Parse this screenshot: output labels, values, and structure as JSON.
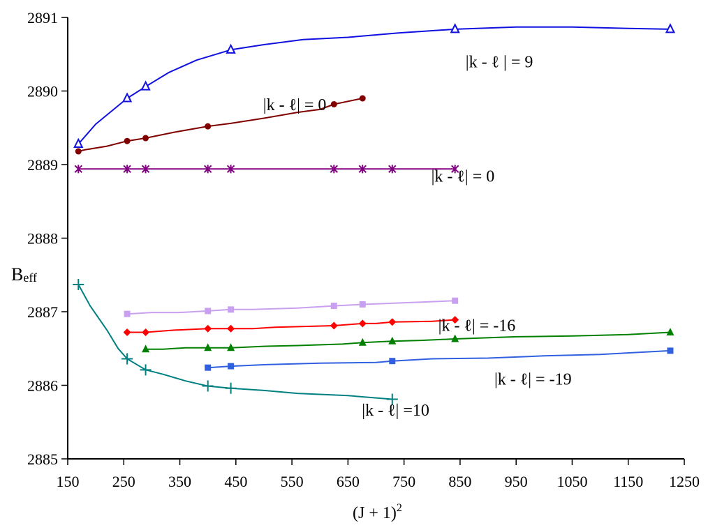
{
  "chart_data": {
    "type": "line",
    "title": "",
    "xlabel": "(J + 1)",
    "xlabel_sup": "2",
    "ylabel": "B",
    "ylabel_sub": "eff",
    "xlim": [
      150,
      1250
    ],
    "ylim": [
      2885,
      2891
    ],
    "xticks": [
      150,
      250,
      350,
      450,
      550,
      650,
      750,
      850,
      950,
      1050,
      1150,
      1250
    ],
    "yticks": [
      2885,
      2886,
      2887,
      2888,
      2889,
      2890,
      2891
    ],
    "grid": false,
    "legend": "none",
    "series": [
      {
        "color": "#1010e0",
        "marker": "triangle-open",
        "points": [
          [
            169,
            2889.28
          ],
          [
            256,
            2889.9
          ],
          [
            289,
            2890.06
          ],
          [
            441,
            2890.56
          ],
          [
            841,
            2890.84
          ],
          [
            1225,
            2890.84
          ]
        ],
        "curve": [
          [
            169,
            2889.28
          ],
          [
            200,
            2889.55
          ],
          [
            256,
            2889.9
          ],
          [
            289,
            2890.06
          ],
          [
            330,
            2890.25
          ],
          [
            380,
            2890.42
          ],
          [
            441,
            2890.56
          ],
          [
            500,
            2890.63
          ],
          [
            570,
            2890.7
          ],
          [
            650,
            2890.73
          ],
          [
            740,
            2890.79
          ],
          [
            841,
            2890.84
          ],
          [
            950,
            2890.87
          ],
          [
            1050,
            2890.87
          ],
          [
            1150,
            2890.85
          ],
          [
            1225,
            2890.84
          ]
        ]
      },
      {
        "color": "#800000",
        "marker": "circle",
        "points": [
          [
            169,
            2889.18
          ],
          [
            256,
            2889.32
          ],
          [
            289,
            2889.36
          ],
          [
            400,
            2889.52
          ],
          [
            625,
            2889.82
          ],
          [
            676,
            2889.9
          ]
        ],
        "curve": [
          [
            169,
            2889.18
          ],
          [
            180,
            2889.2
          ],
          [
            220,
            2889.25
          ],
          [
            256,
            2889.32
          ],
          [
            289,
            2889.36
          ],
          [
            340,
            2889.44
          ],
          [
            400,
            2889.52
          ],
          [
            441,
            2889.56
          ],
          [
            500,
            2889.63
          ],
          [
            560,
            2889.71
          ],
          [
            600,
            2889.75
          ],
          [
            625,
            2889.82
          ],
          [
            676,
            2889.9
          ]
        ]
      },
      {
        "color": "#800080",
        "marker": "star",
        "points": [
          [
            169,
            2888.94
          ],
          [
            256,
            2888.94
          ],
          [
            289,
            2888.94
          ],
          [
            400,
            2888.94
          ],
          [
            441,
            2888.94
          ],
          [
            625,
            2888.94
          ],
          [
            676,
            2888.94
          ],
          [
            729,
            2888.94
          ],
          [
            841,
            2888.94
          ]
        ],
        "curve": [
          [
            169,
            2888.94
          ],
          [
            841,
            2888.94
          ]
        ]
      },
      {
        "color": "#c9a0f0",
        "marker": "square",
        "points": [
          [
            256,
            2886.97
          ],
          [
            400,
            2887.01
          ],
          [
            441,
            2887.03
          ],
          [
            625,
            2887.08
          ],
          [
            676,
            2887.1
          ],
          [
            841,
            2887.15
          ]
        ],
        "curve": [
          [
            256,
            2886.97
          ],
          [
            300,
            2886.99
          ],
          [
            350,
            2886.99
          ],
          [
            400,
            2887.01
          ],
          [
            441,
            2887.03
          ],
          [
            480,
            2887.03
          ],
          [
            560,
            2887.05
          ],
          [
            625,
            2887.08
          ],
          [
            676,
            2887.1
          ],
          [
            780,
            2887.13
          ],
          [
            841,
            2887.15
          ]
        ]
      },
      {
        "color": "#ff0000",
        "marker": "diamond",
        "points": [
          [
            256,
            2886.72
          ],
          [
            289,
            2886.72
          ],
          [
            400,
            2886.77
          ],
          [
            441,
            2886.77
          ],
          [
            625,
            2886.81
          ],
          [
            676,
            2886.84
          ],
          [
            729,
            2886.86
          ],
          [
            841,
            2886.89
          ]
        ],
        "curve": [
          [
            256,
            2886.72
          ],
          [
            289,
            2886.72
          ],
          [
            340,
            2886.75
          ],
          [
            400,
            2886.77
          ],
          [
            441,
            2886.77
          ],
          [
            480,
            2886.77
          ],
          [
            520,
            2886.79
          ],
          [
            625,
            2886.81
          ],
          [
            676,
            2886.84
          ],
          [
            700,
            2886.84
          ],
          [
            729,
            2886.86
          ],
          [
            800,
            2886.87
          ],
          [
            841,
            2886.89
          ]
        ]
      },
      {
        "color": "#008000",
        "marker": "triangle",
        "points": [
          [
            289,
            2886.49
          ],
          [
            400,
            2886.51
          ],
          [
            441,
            2886.51
          ],
          [
            676,
            2886.58
          ],
          [
            729,
            2886.6
          ],
          [
            841,
            2886.63
          ],
          [
            1225,
            2886.72
          ]
        ],
        "curve": [
          [
            289,
            2886.49
          ],
          [
            320,
            2886.49
          ],
          [
            360,
            2886.51
          ],
          [
            400,
            2886.51
          ],
          [
            441,
            2886.51
          ],
          [
            500,
            2886.53
          ],
          [
            560,
            2886.54
          ],
          [
            640,
            2886.56
          ],
          [
            676,
            2886.58
          ],
          [
            729,
            2886.6
          ],
          [
            780,
            2886.61
          ],
          [
            841,
            2886.63
          ],
          [
            950,
            2886.66
          ],
          [
            1050,
            2886.67
          ],
          [
            1150,
            2886.69
          ],
          [
            1225,
            2886.72
          ]
        ]
      },
      {
        "color": "#3060e0",
        "marker": "square",
        "points": [
          [
            400,
            2886.24
          ],
          [
            441,
            2886.26
          ],
          [
            729,
            2886.33
          ],
          [
            1225,
            2886.47
          ]
        ],
        "curve": [
          [
            400,
            2886.24
          ],
          [
            441,
            2886.26
          ],
          [
            500,
            2886.28
          ],
          [
            600,
            2886.3
          ],
          [
            700,
            2886.31
          ],
          [
            729,
            2886.33
          ],
          [
            800,
            2886.36
          ],
          [
            900,
            2886.37
          ],
          [
            1000,
            2886.4
          ],
          [
            1100,
            2886.42
          ],
          [
            1225,
            2886.47
          ]
        ]
      },
      {
        "color": "#008080",
        "marker": "plus",
        "points": [
          [
            169,
            2887.37
          ],
          [
            256,
            2886.36
          ],
          [
            289,
            2886.21
          ],
          [
            400,
            2885.99
          ],
          [
            441,
            2885.96
          ],
          [
            729,
            2885.81
          ]
        ],
        "curve": [
          [
            169,
            2887.37
          ],
          [
            190,
            2887.08
          ],
          [
            220,
            2886.75
          ],
          [
            240,
            2886.5
          ],
          [
            256,
            2886.36
          ],
          [
            289,
            2886.21
          ],
          [
            320,
            2886.15
          ],
          [
            360,
            2886.06
          ],
          [
            400,
            2885.99
          ],
          [
            441,
            2885.96
          ],
          [
            500,
            2885.93
          ],
          [
            560,
            2885.89
          ],
          [
            650,
            2885.86
          ],
          [
            729,
            2885.81
          ]
        ]
      }
    ],
    "annotations": [
      {
        "text": "|k - ℓ | = 9",
        "x": 920,
        "y": 2890.32
      },
      {
        "text": "|k - ℓ| = 0",
        "x": 555,
        "y": 2889.74
      },
      {
        "text": "|k - ℓ| = 0",
        "x": 855,
        "y": 2888.77
      },
      {
        "text": "|k - ℓ| = -16",
        "x": 880,
        "y": 2886.74
      },
      {
        "text": "|k - ℓ| = -19",
        "x": 980,
        "y": 2886.01
      },
      {
        "text": "|k - ℓ| =10",
        "x": 735,
        "y": 2885.59
      }
    ]
  }
}
